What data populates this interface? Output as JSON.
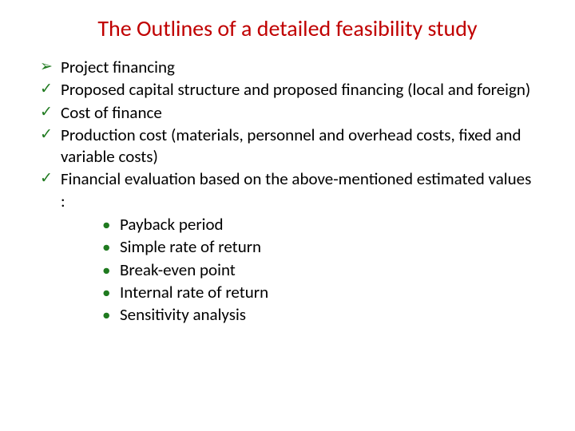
{
  "title": "The Outlines of a detailed feasibility study",
  "colors": {
    "title": "#c00000",
    "bullet": "#1f7a1f",
    "text": "#000000",
    "background": "#ffffff"
  },
  "items": [
    {
      "marker": "arrow",
      "text": "Project financing"
    },
    {
      "marker": "check",
      "text": "Proposed capital structure and proposed financing (local and foreign)"
    },
    {
      "marker": "check",
      "text": "Cost of finance"
    },
    {
      "marker": "check",
      "text": "Production cost (materials, personnel and overhead costs, fixed and variable costs)"
    },
    {
      "marker": "check",
      "text": "Financial evaluation based on the above-mentioned estimated values :"
    }
  ],
  "subitems": [
    "Payback period",
    "Simple rate of return",
    "Break-even point",
    "Internal rate of return",
    "Sensitivity analysis"
  ],
  "markers": {
    "arrow": "➢",
    "check": "✓",
    "dot": "•"
  },
  "typography": {
    "title_fontsize": 28,
    "body_fontsize": 21,
    "font_family": "Calibri"
  }
}
